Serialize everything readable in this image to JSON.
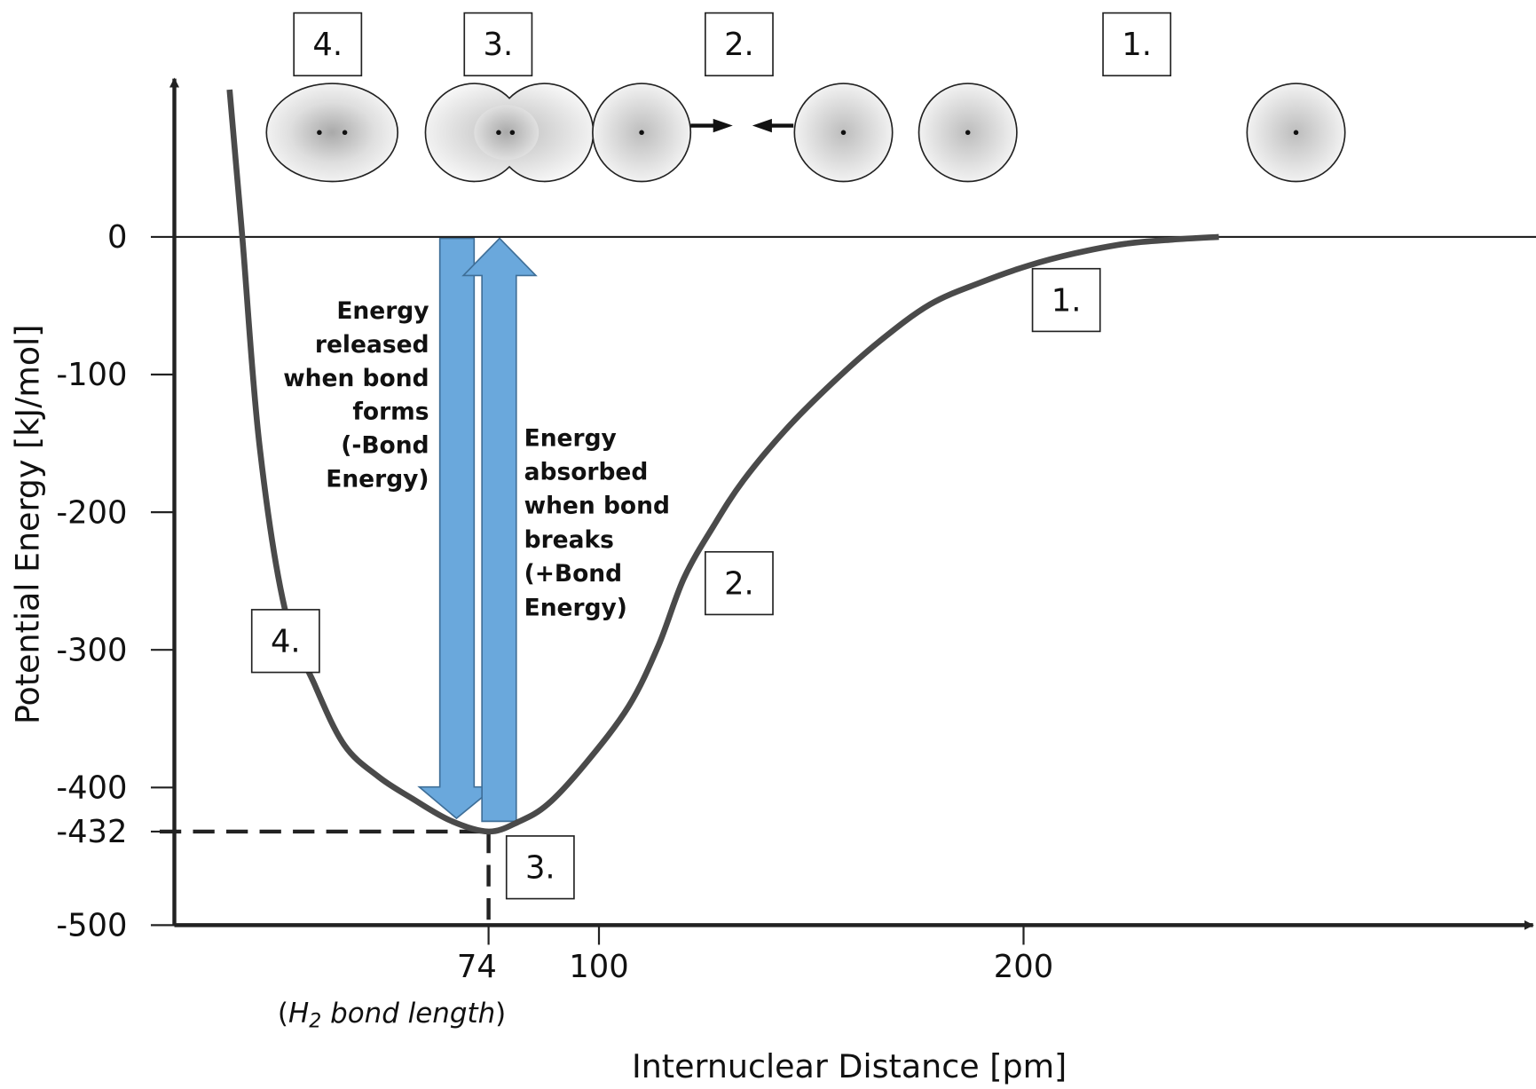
{
  "chart_data": {
    "type": "line",
    "x_label": "Internuclear Distance [pm]",
    "y_label": "Potential Energy [kJ/mol]",
    "x": [
      13,
      16,
      20,
      26,
      33,
      40,
      48,
      56,
      65,
      74,
      81,
      88,
      97,
      107,
      114,
      120,
      127,
      134,
      144,
      155,
      166,
      178,
      190,
      201,
      212,
      224,
      235,
      246
    ],
    "series": [
      {
        "color": "#4a4a4a",
        "values": [
          107,
          0,
          -150,
          -270,
          -325,
          -369,
          -392,
          -408,
          -424,
          -432,
          -425,
          -412,
          -382,
          -341,
          -297,
          -248,
          -210,
          -177,
          -140,
          -106,
          -76,
          -49,
          -33,
          -21,
          -12,
          -5,
          -2,
          0
        ]
      }
    ],
    "xlim": [
      0,
      320
    ],
    "ylim": [
      -500,
      115
    ],
    "xticks": [
      74,
      100,
      200
    ],
    "yticks": [
      0,
      -100,
      -200,
      -300,
      -400,
      -432,
      -500
    ],
    "x_note": [
      "(",
      "H",
      "2",
      " bond length",
      ")"
    ],
    "stage_labels_top": [
      "4.",
      "3.",
      "2.",
      "1."
    ],
    "stage_labels_curve": [
      "1.",
      "2.",
      "4.",
      "3."
    ],
    "note_released": [
      "Energy",
      "released",
      "when bond",
      "forms",
      "(-Bond",
      "Energy)"
    ],
    "note_absorbed": [
      "Energy",
      "absorbed",
      "when bond",
      "breaks",
      "(+Bond",
      "Energy)"
    ]
  }
}
